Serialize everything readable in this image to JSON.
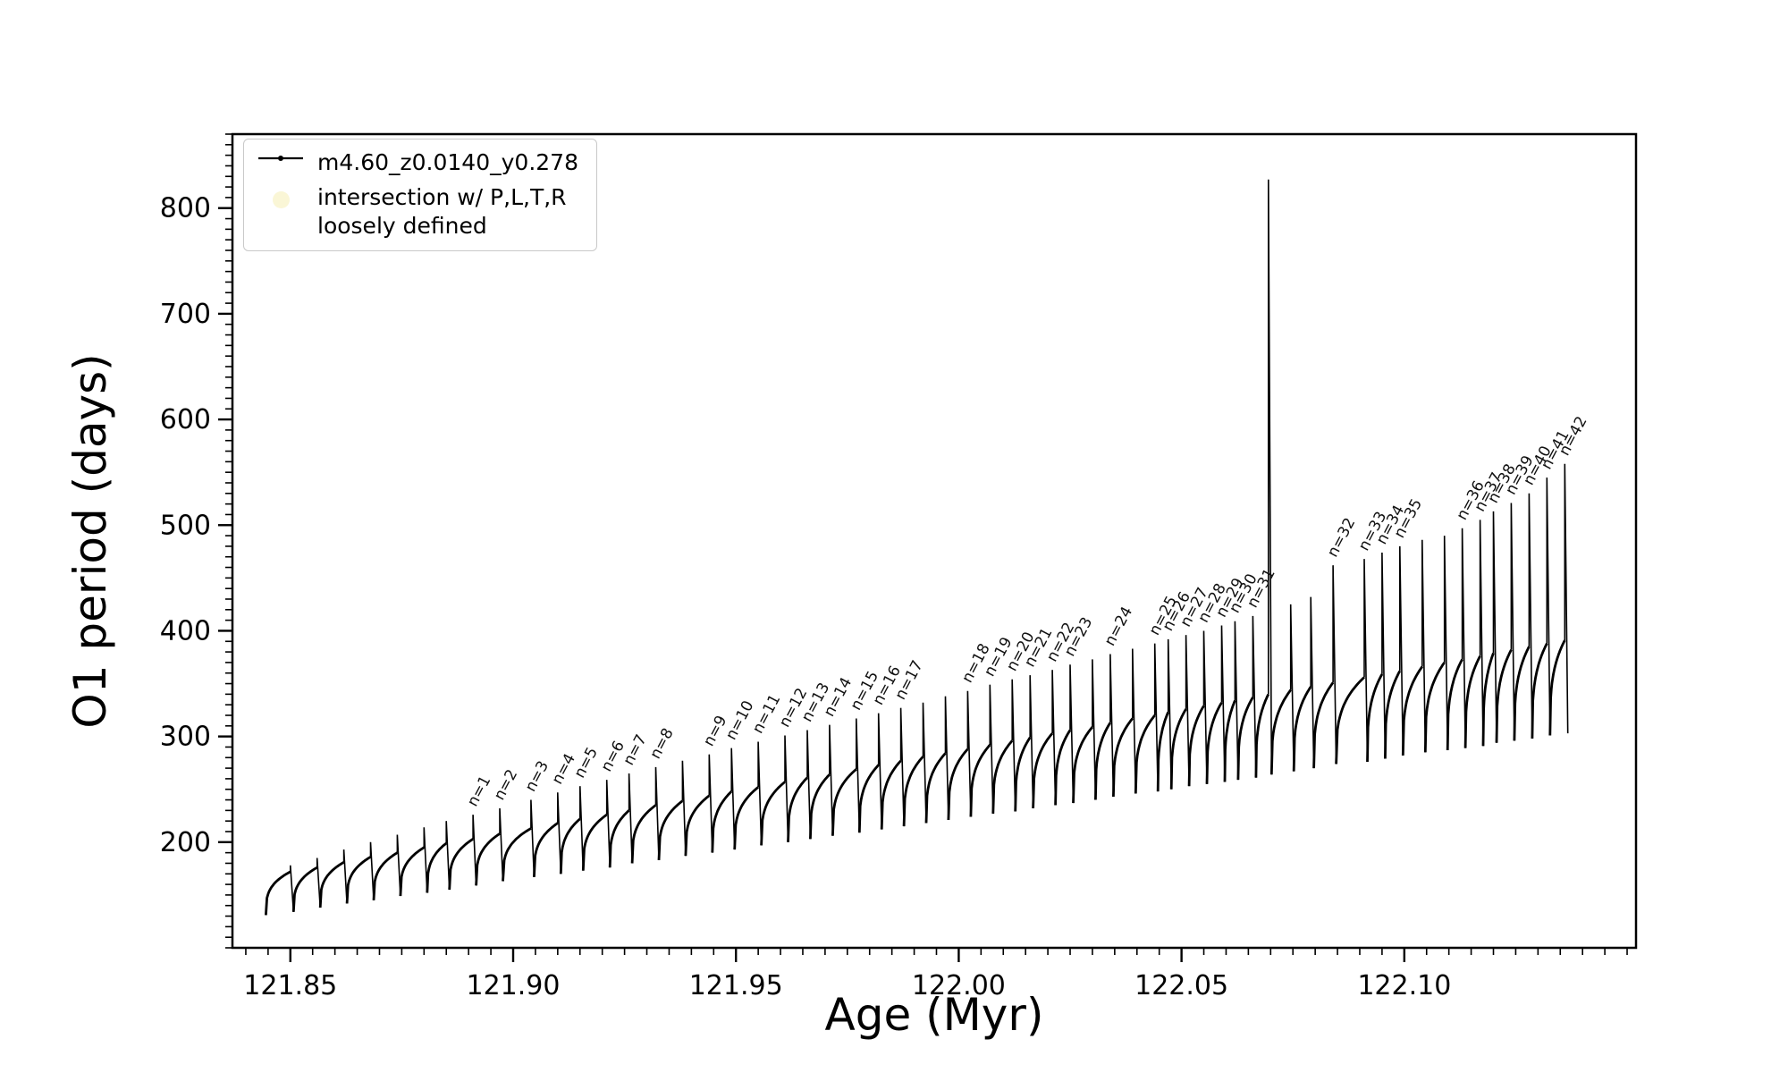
{
  "figure": {
    "background": "#ffffff",
    "frame_color": "#000000"
  },
  "legend": {
    "series_label": "m4.60_z0.0140_y0.278",
    "intersection_line1": "intersection w/ P,L,T,R",
    "intersection_line2": "loosely defined",
    "intersection_marker_color": "#f5efb5",
    "series_color": "#000000"
  },
  "chart_data": {
    "type": "line",
    "title": "",
    "xlabel": "Age (Myr)",
    "ylabel": "O1 period (days)",
    "xlim": [
      121.837,
      122.152
    ],
    "ylim": [
      100,
      870
    ],
    "grid": false,
    "legend_position": "upper-left",
    "series_name": "m4.60_z0.0140_y0.278",
    "series_color": "#000000",
    "x_minor_step": 0.005,
    "y_minor_step": 10,
    "xticks": [
      {
        "v": 121.85,
        "label": "121.85"
      },
      {
        "v": 121.9,
        "label": "121.90"
      },
      {
        "v": 121.95,
        "label": "121.95"
      },
      {
        "v": 122.0,
        "label": "122.00"
      },
      {
        "v": 122.05,
        "label": "122.05"
      },
      {
        "v": 122.1,
        "label": "122.10"
      }
    ],
    "yticks": [
      {
        "v": 200,
        "label": "200"
      },
      {
        "v": 300,
        "label": "300"
      },
      {
        "v": 400,
        "label": "400"
      },
      {
        "v": 500,
        "label": "500"
      },
      {
        "v": 600,
        "label": "600"
      },
      {
        "v": 700,
        "label": "700"
      },
      {
        "v": 800,
        "label": "800"
      }
    ],
    "cycles": [
      {
        "label": "",
        "x": 121.85,
        "dip": 131,
        "top": 172,
        "spike": 178
      },
      {
        "label": "",
        "x": 121.856,
        "dip": 134,
        "top": 176,
        "spike": 185
      },
      {
        "label": "",
        "x": 121.862,
        "dip": 138,
        "top": 181,
        "spike": 193
      },
      {
        "label": "",
        "x": 121.868,
        "dip": 142,
        "top": 186,
        "spike": 200
      },
      {
        "label": "",
        "x": 121.874,
        "dip": 145,
        "top": 190,
        "spike": 207
      },
      {
        "label": "",
        "x": 121.88,
        "dip": 149,
        "top": 195,
        "spike": 214
      },
      {
        "label": "",
        "x": 121.885,
        "dip": 152,
        "top": 199,
        "spike": 220
      },
      {
        "label": "n=1",
        "x": 121.891,
        "dip": 155,
        "top": 203,
        "spike": 226
      },
      {
        "label": "n=2",
        "x": 121.897,
        "dip": 159,
        "top": 208,
        "spike": 232
      },
      {
        "label": "n=3",
        "x": 121.904,
        "dip": 163,
        "top": 213,
        "spike": 240
      },
      {
        "label": "n=4",
        "x": 121.91,
        "dip": 167,
        "top": 218,
        "spike": 247
      },
      {
        "label": "n=5",
        "x": 121.915,
        "dip": 170,
        "top": 222,
        "spike": 253
      },
      {
        "label": "n=6",
        "x": 121.921,
        "dip": 173,
        "top": 226,
        "spike": 259
      },
      {
        "label": "n=7",
        "x": 121.926,
        "dip": 176,
        "top": 230,
        "spike": 265
      },
      {
        "label": "n=8",
        "x": 121.932,
        "dip": 180,
        "top": 235,
        "spike": 271
      },
      {
        "label": "",
        "x": 121.938,
        "dip": 183,
        "top": 239,
        "spike": 277
      },
      {
        "label": "n=9",
        "x": 121.944,
        "dip": 187,
        "top": 244,
        "spike": 283
      },
      {
        "label": "n=10",
        "x": 121.949,
        "dip": 190,
        "top": 248,
        "spike": 289
      },
      {
        "label": "n=11",
        "x": 121.955,
        "dip": 193,
        "top": 252,
        "spike": 295
      },
      {
        "label": "n=12",
        "x": 121.961,
        "dip": 197,
        "top": 257,
        "spike": 301
      },
      {
        "label": "n=13",
        "x": 121.966,
        "dip": 200,
        "top": 261,
        "spike": 306
      },
      {
        "label": "n=14",
        "x": 121.971,
        "dip": 203,
        "top": 264,
        "spike": 311
      },
      {
        "label": "n=15",
        "x": 121.977,
        "dip": 206,
        "top": 269,
        "spike": 317
      },
      {
        "label": "n=16",
        "x": 121.982,
        "dip": 209,
        "top": 273,
        "spike": 322
      },
      {
        "label": "n=17",
        "x": 121.987,
        "dip": 212,
        "top": 277,
        "spike": 327
      },
      {
        "label": "",
        "x": 121.992,
        "dip": 215,
        "top": 281,
        "spike": 332
      },
      {
        "label": "",
        "x": 121.997,
        "dip": 218,
        "top": 284,
        "spike": 338
      },
      {
        "label": "n=18",
        "x": 122.002,
        "dip": 221,
        "top": 288,
        "spike": 343
      },
      {
        "label": "n=19",
        "x": 122.007,
        "dip": 224,
        "top": 292,
        "spike": 349
      },
      {
        "label": "n=20",
        "x": 122.012,
        "dip": 227,
        "top": 296,
        "spike": 354
      },
      {
        "label": "n=21",
        "x": 122.016,
        "dip": 229,
        "top": 299,
        "spike": 358
      },
      {
        "label": "n=22",
        "x": 122.021,
        "dip": 232,
        "top": 303,
        "spike": 363
      },
      {
        "label": "n=23",
        "x": 122.025,
        "dip": 235,
        "top": 306,
        "spike": 368
      },
      {
        "label": "",
        "x": 122.03,
        "dip": 237,
        "top": 309,
        "spike": 373
      },
      {
        "label": "n=24",
        "x": 122.034,
        "dip": 240,
        "top": 313,
        "spike": 378
      },
      {
        "label": "",
        "x": 122.039,
        "dip": 243,
        "top": 317,
        "spike": 383
      },
      {
        "label": "n=25",
        "x": 122.044,
        "dip": 246,
        "top": 320,
        "spike": 388
      },
      {
        "label": "n=26",
        "x": 122.047,
        "dip": 248,
        "top": 323,
        "spike": 392
      },
      {
        "label": "n=27",
        "x": 122.051,
        "dip": 250,
        "top": 326,
        "spike": 396
      },
      {
        "label": "n=28",
        "x": 122.055,
        "dip": 253,
        "top": 329,
        "spike": 400
      },
      {
        "label": "n=29",
        "x": 122.059,
        "dip": 255,
        "top": 332,
        "spike": 405
      },
      {
        "label": "n=30",
        "x": 122.062,
        "dip": 257,
        "top": 334,
        "spike": 409
      },
      {
        "label": "n=31",
        "x": 122.066,
        "dip": 259,
        "top": 337,
        "spike": 414
      },
      {
        "label": "",
        "x": 122.0695,
        "dip": 261,
        "top": 340,
        "spike": 827
      },
      {
        "label": "",
        "x": 122.0745,
        "dip": 264,
        "top": 344,
        "spike": 425
      },
      {
        "label": "",
        "x": 122.079,
        "dip": 267,
        "top": 347,
        "spike": 432
      },
      {
        "label": "n=32",
        "x": 122.084,
        "dip": 270,
        "top": 351,
        "spike": 462
      },
      {
        "label": "n=33",
        "x": 122.091,
        "dip": 274,
        "top": 356,
        "spike": 468
      },
      {
        "label": "n=34",
        "x": 122.095,
        "dip": 276,
        "top": 359,
        "spike": 474
      },
      {
        "label": "n=35",
        "x": 122.099,
        "dip": 279,
        "top": 362,
        "spike": 480
      },
      {
        "label": "",
        "x": 122.104,
        "dip": 282,
        "top": 366,
        "spike": 486
      },
      {
        "label": "",
        "x": 122.109,
        "dip": 285,
        "top": 370,
        "spike": 490
      },
      {
        "label": "n=36",
        "x": 122.113,
        "dip": 287,
        "top": 373,
        "spike": 497
      },
      {
        "label": "n=37",
        "x": 122.117,
        "dip": 289,
        "top": 376,
        "spike": 505
      },
      {
        "label": "n=38",
        "x": 122.12,
        "dip": 291,
        "top": 379,
        "spike": 513
      },
      {
        "label": "n=39",
        "x": 122.124,
        "dip": 294,
        "top": 382,
        "spike": 521
      },
      {
        "label": "n=40",
        "x": 122.128,
        "dip": 296,
        "top": 385,
        "spike": 530
      },
      {
        "label": "n=41",
        "x": 122.132,
        "dip": 298,
        "top": 388,
        "spike": 545
      },
      {
        "label": "n=42",
        "x": 122.136,
        "dip": 301,
        "top": 391,
        "spike": 558
      }
    ]
  }
}
